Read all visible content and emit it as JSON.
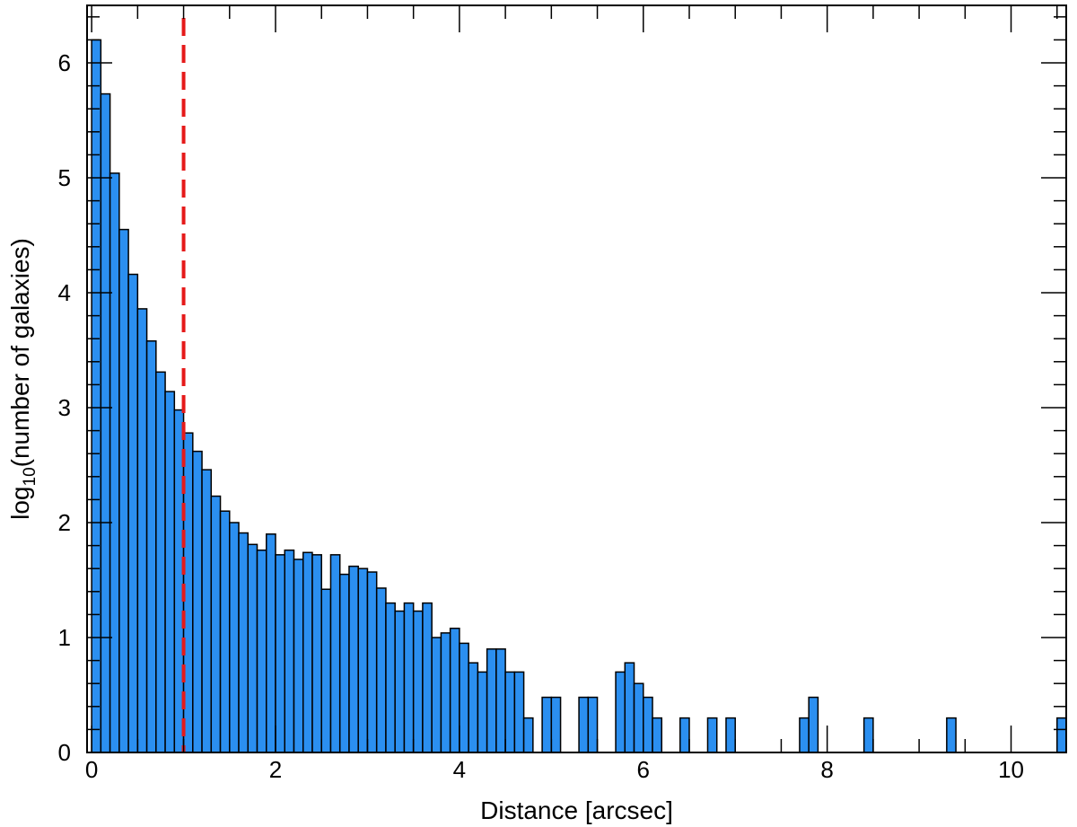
{
  "chart_data": {
    "type": "bar",
    "xlabel": "Distance [arcsec]",
    "ylabel": {
      "prefix": "log",
      "subscript": "10",
      "suffix": "(number of galaxies)"
    },
    "xlim": [
      -0.05,
      10.6
    ],
    "ylim": [
      0,
      6.5
    ],
    "bin_width": 0.1,
    "x_ticks": [
      0,
      2,
      4,
      6,
      8,
      10
    ],
    "y_ticks": [
      0,
      1,
      2,
      3,
      4,
      5,
      6
    ],
    "x_minor_step": 0.5,
    "y_minor_step": 0.2,
    "bar_color": "#2b8ff0",
    "bar_edge_color": "#000000",
    "bins": [
      {
        "x": 0.0,
        "value": 6.2
      },
      {
        "x": 0.1,
        "value": 5.73
      },
      {
        "x": 0.2,
        "value": 5.04
      },
      {
        "x": 0.3,
        "value": 4.55
      },
      {
        "x": 0.4,
        "value": 4.16
      },
      {
        "x": 0.5,
        "value": 3.86
      },
      {
        "x": 0.6,
        "value": 3.58
      },
      {
        "x": 0.7,
        "value": 3.31
      },
      {
        "x": 0.8,
        "value": 3.14
      },
      {
        "x": 0.9,
        "value": 2.98
      },
      {
        "x": 1.0,
        "value": 2.78
      },
      {
        "x": 1.1,
        "value": 2.62
      },
      {
        "x": 1.2,
        "value": 2.46
      },
      {
        "x": 1.3,
        "value": 2.23
      },
      {
        "x": 1.4,
        "value": 2.1
      },
      {
        "x": 1.5,
        "value": 2.0
      },
      {
        "x": 1.6,
        "value": 1.91
      },
      {
        "x": 1.7,
        "value": 1.81
      },
      {
        "x": 1.8,
        "value": 1.76
      },
      {
        "x": 1.9,
        "value": 1.9
      },
      {
        "x": 2.0,
        "value": 1.72
      },
      {
        "x": 2.1,
        "value": 1.76
      },
      {
        "x": 2.2,
        "value": 1.68
      },
      {
        "x": 2.3,
        "value": 1.74
      },
      {
        "x": 2.4,
        "value": 1.72
      },
      {
        "x": 2.5,
        "value": 1.42
      },
      {
        "x": 2.6,
        "value": 1.72
      },
      {
        "x": 2.7,
        "value": 1.55
      },
      {
        "x": 2.8,
        "value": 1.62
      },
      {
        "x": 2.9,
        "value": 1.6
      },
      {
        "x": 3.0,
        "value": 1.57
      },
      {
        "x": 3.1,
        "value": 1.43
      },
      {
        "x": 3.2,
        "value": 1.3
      },
      {
        "x": 3.3,
        "value": 1.23
      },
      {
        "x": 3.4,
        "value": 1.3
      },
      {
        "x": 3.5,
        "value": 1.23
      },
      {
        "x": 3.6,
        "value": 1.3
      },
      {
        "x": 3.7,
        "value": 1.0
      },
      {
        "x": 3.8,
        "value": 1.04
      },
      {
        "x": 3.9,
        "value": 1.08
      },
      {
        "x": 4.0,
        "value": 0.95
      },
      {
        "x": 4.1,
        "value": 0.78
      },
      {
        "x": 4.2,
        "value": 0.7
      },
      {
        "x": 4.3,
        "value": 0.9
      },
      {
        "x": 4.4,
        "value": 0.9
      },
      {
        "x": 4.5,
        "value": 0.7
      },
      {
        "x": 4.6,
        "value": 0.7
      },
      {
        "x": 4.7,
        "value": 0.3
      },
      {
        "x": 4.8,
        "value": 0.0
      },
      {
        "x": 4.9,
        "value": 0.48
      },
      {
        "x": 5.0,
        "value": 0.48
      },
      {
        "x": 5.1,
        "value": 0.0
      },
      {
        "x": 5.2,
        "value": 0.0
      },
      {
        "x": 5.3,
        "value": 0.48
      },
      {
        "x": 5.4,
        "value": 0.48
      },
      {
        "x": 5.5,
        "value": 0.0
      },
      {
        "x": 5.6,
        "value": 0.0
      },
      {
        "x": 5.7,
        "value": 0.7
      },
      {
        "x": 5.8,
        "value": 0.78
      },
      {
        "x": 5.9,
        "value": 0.6
      },
      {
        "x": 6.0,
        "value": 0.48
      },
      {
        "x": 6.1,
        "value": 0.3
      },
      {
        "x": 6.2,
        "value": 0.0
      },
      {
        "x": 6.3,
        "value": 0.0
      },
      {
        "x": 6.4,
        "value": 0.3
      },
      {
        "x": 6.5,
        "value": 0.0
      },
      {
        "x": 6.6,
        "value": 0.0
      },
      {
        "x": 6.7,
        "value": 0.3
      },
      {
        "x": 6.8,
        "value": 0.0
      },
      {
        "x": 6.9,
        "value": 0.3
      },
      {
        "x": 7.7,
        "value": 0.3
      },
      {
        "x": 7.8,
        "value": 0.48
      },
      {
        "x": 8.4,
        "value": 0.3
      },
      {
        "x": 9.3,
        "value": 0.3
      },
      {
        "x": 10.5,
        "value": 0.3
      }
    ],
    "reference_line": {
      "x": 1.0,
      "color": "#e51a1a",
      "style": "dashed"
    }
  }
}
